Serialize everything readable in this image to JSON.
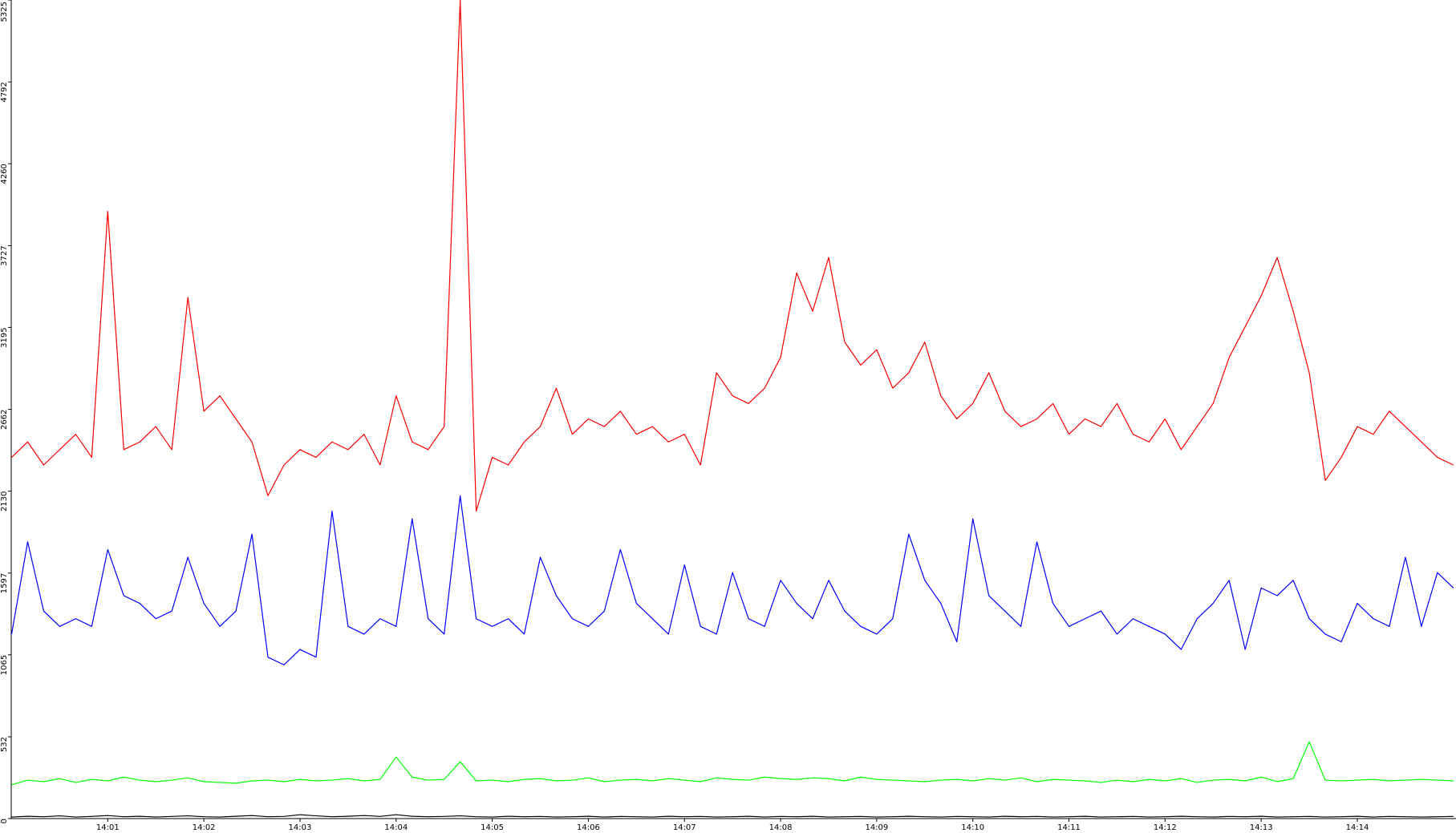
{
  "chart_data": {
    "type": "line",
    "categories": [
      null,
      null,
      null,
      null,
      null,
      null,
      "14:01",
      null,
      null,
      null,
      null,
      null,
      "14:02",
      null,
      null,
      null,
      null,
      null,
      "14:03",
      null,
      null,
      null,
      null,
      null,
      "14:04",
      null,
      null,
      null,
      null,
      null,
      "14:05",
      null,
      null,
      null,
      null,
      null,
      "14:06",
      null,
      null,
      null,
      null,
      null,
      "14:07",
      null,
      null,
      null,
      null,
      null,
      "14:08",
      null,
      null,
      null,
      null,
      null,
      "14:09",
      null,
      null,
      null,
      null,
      null,
      "14:10",
      null,
      null,
      null,
      null,
      null,
      "14:11",
      null,
      null,
      null,
      null,
      null,
      "14:12",
      null,
      null,
      null,
      null,
      null,
      "14:13",
      null,
      null,
      null,
      null,
      null,
      "14:14",
      null,
      null,
      null,
      null,
      null,
      null
    ],
    "series": [
      {
        "color": "#ff0000",
        "values": [
          2350,
          2450,
          2300,
          2400,
          2500,
          2350,
          3950,
          2400,
          2450,
          2550,
          2400,
          3390,
          2650,
          2750,
          2600,
          2450,
          2100,
          2300,
          2400,
          2350,
          2450,
          2400,
          2500,
          2300,
          2750,
          2450,
          2400,
          2550,
          5325,
          2000,
          2350,
          2300,
          2450,
          2550,
          2800,
          2500,
          2600,
          2550,
          2650,
          2500,
          2550,
          2450,
          2500,
          2300,
          2900,
          2750,
          2700,
          2800,
          3000,
          3550,
          3300,
          3650,
          3100,
          2950,
          3050,
          2800,
          2900,
          3100,
          2750,
          2600,
          2700,
          2900,
          2650,
          2550,
          2600,
          2700,
          2500,
          2600,
          2550,
          2700,
          2500,
          2450,
          2600,
          2400,
          2550,
          2700,
          3000,
          3200,
          3400,
          3650,
          3300,
          2900,
          2200,
          2350,
          2550,
          2500,
          2650,
          2550,
          2450,
          2350,
          2300
        ]
      },
      {
        "color": "#0000ff",
        "values": [
          1200,
          1800,
          1350,
          1250,
          1300,
          1250,
          1750,
          1450,
          1400,
          1300,
          1350,
          1700,
          1400,
          1250,
          1350,
          1850,
          1050,
          1000,
          1100,
          1050,
          2000,
          1250,
          1200,
          1300,
          1250,
          1950,
          1300,
          1200,
          2100,
          1300,
          1250,
          1300,
          1200,
          1700,
          1450,
          1300,
          1250,
          1350,
          1750,
          1400,
          1300,
          1200,
          1650,
          1250,
          1200,
          1600,
          1300,
          1250,
          1550,
          1400,
          1300,
          1550,
          1350,
          1250,
          1200,
          1300,
          1850,
          1550,
          1400,
          1150,
          1950,
          1450,
          1350,
          1250,
          1800,
          1400,
          1250,
          1300,
          1350,
          1200,
          1300,
          1250,
          1200,
          1100,
          1300,
          1400,
          1550,
          1100,
          1500,
          1450,
          1550,
          1300,
          1200,
          1150,
          1400,
          1300,
          1250,
          1700,
          1250,
          1600,
          1500
        ]
      },
      {
        "color": "#00ff00",
        "values": [
          220,
          250,
          240,
          260,
          235,
          255,
          245,
          270,
          250,
          240,
          250,
          265,
          240,
          235,
          230,
          245,
          250,
          240,
          255,
          245,
          250,
          260,
          245,
          255,
          400,
          270,
          250,
          255,
          370,
          245,
          250,
          240,
          255,
          260,
          245,
          250,
          265,
          240,
          250,
          255,
          245,
          260,
          250,
          240,
          265,
          255,
          250,
          270,
          260,
          255,
          265,
          260,
          245,
          270,
          255,
          250,
          245,
          240,
          250,
          255,
          245,
          260,
          250,
          265,
          240,
          255,
          250,
          245,
          235,
          250,
          240,
          255,
          245,
          260,
          235,
          250,
          255,
          245,
          270,
          240,
          260,
          500,
          250,
          245,
          250,
          255,
          245,
          250,
          255,
          250,
          245
        ]
      },
      {
        "color": "#000000",
        "values": [
          10,
          15,
          12,
          18,
          10,
          14,
          20,
          12,
          15,
          10,
          14,
          18,
          12,
          10,
          15,
          20,
          12,
          14,
          25,
          18,
          12,
          15,
          20,
          14,
          25,
          15,
          12,
          14,
          18,
          12,
          10,
          15,
          12,
          14,
          10,
          12,
          15,
          10,
          14,
          12,
          10,
          15,
          12,
          14,
          10,
          12,
          15,
          10,
          14,
          12,
          15,
          10,
          12,
          14,
          10,
          12,
          15,
          12,
          10,
          14,
          12,
          10,
          15,
          12,
          14,
          10,
          12,
          15,
          10,
          12,
          14,
          10,
          12,
          15,
          12,
          10,
          14,
          12,
          15,
          10,
          12,
          14,
          10,
          12,
          15,
          10,
          14,
          12,
          10,
          12,
          14
        ]
      }
    ],
    "ylim": [
      0,
      5325
    ],
    "yticks": [
      0,
      532,
      1065,
      1597,
      2130,
      2662,
      3195,
      3727,
      4260,
      4792,
      5325
    ]
  }
}
